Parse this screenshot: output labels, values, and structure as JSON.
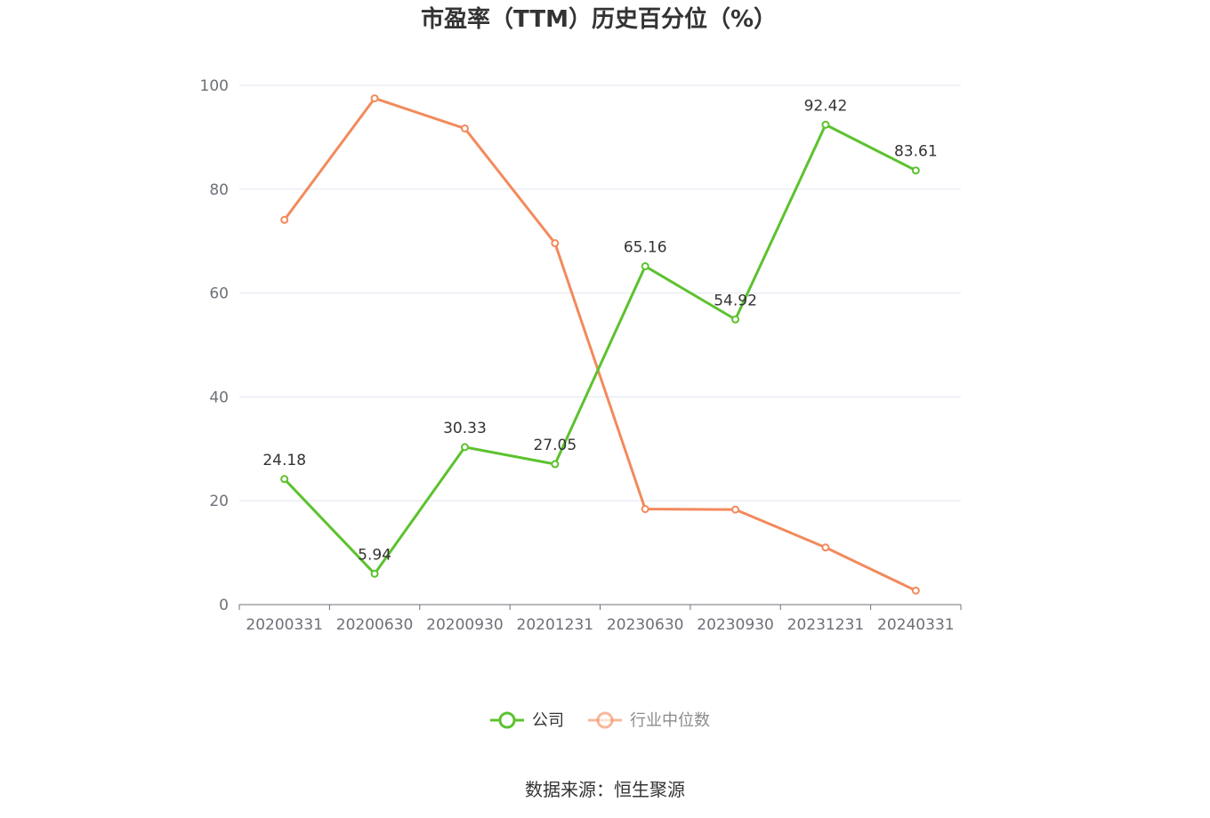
{
  "chart_data": {
    "type": "line",
    "title": "市盈率（TTM）历史百分位（%）",
    "categories": [
      "20200331",
      "20200630",
      "20200930",
      "20201231",
      "20230630",
      "20230930",
      "20231231",
      "20240331"
    ],
    "ylim": [
      0,
      100
    ],
    "yticks": [
      0,
      20,
      40,
      60,
      80,
      100
    ],
    "grid": true,
    "legend_position": "bottom",
    "series": [
      {
        "name": "公司",
        "color": "#5cc22e",
        "values": [
          24.18,
          5.94,
          30.33,
          27.05,
          65.16,
          54.92,
          92.42,
          83.61
        ],
        "labels": [
          "24.18",
          "5.94",
          "30.33",
          "27.05",
          "65.16",
          "54.92",
          "92.42",
          "83.61"
        ],
        "show_labels": true
      },
      {
        "name": "行业中位数",
        "color": "#f28a5c",
        "values": [
          74.1,
          97.5,
          91.7,
          69.6,
          18.4,
          18.3,
          11.0,
          2.7
        ],
        "show_labels": false
      }
    ]
  },
  "source_note": "数据来源：恒生聚源"
}
